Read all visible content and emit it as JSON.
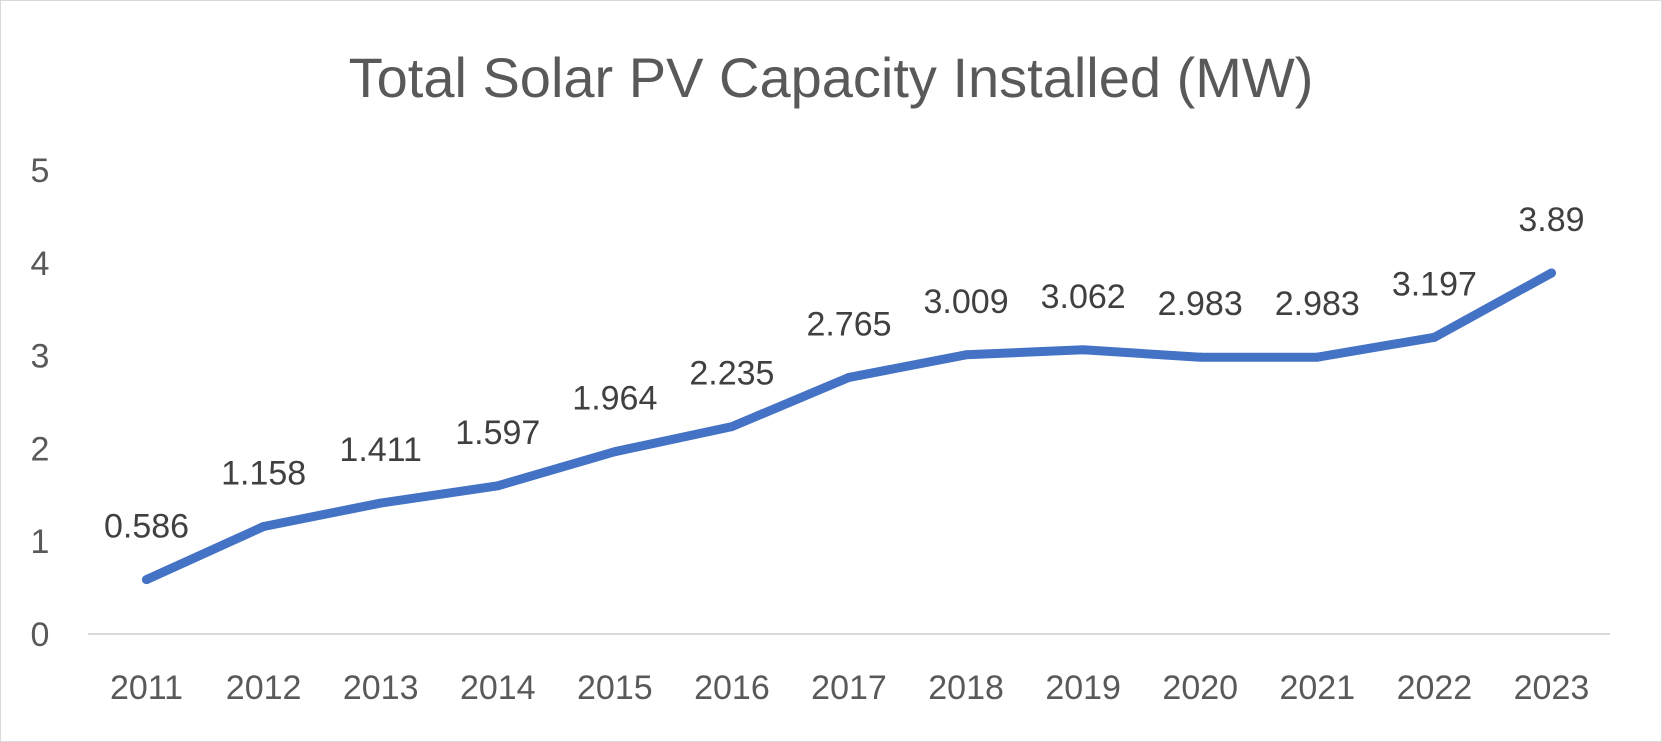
{
  "chart_data": {
    "type": "line",
    "title": "Total Solar PV Capacity Installed  (MW)",
    "xlabel": "",
    "ylabel": "",
    "categories": [
      "2011",
      "2012",
      "2013",
      "2014",
      "2015",
      "2016",
      "2017",
      "2018",
      "2019",
      "2020",
      "2021",
      "2022",
      "2023"
    ],
    "series": [
      {
        "values": [
          0.586,
          1.158,
          1.411,
          1.597,
          1.964,
          2.235,
          2.765,
          3.009,
          3.062,
          2.983,
          2.983,
          3.197,
          3.89
        ],
        "labels": [
          "0.586",
          "1.158",
          "1.411",
          "1.597",
          "1.964",
          "2.235",
          "2.765",
          "3.009",
          "3.062",
          "2.983",
          "2.983",
          "3.197",
          "3.89"
        ],
        "color": "#4472c4"
      }
    ],
    "ylim": [
      0,
      5
    ],
    "yticks": [
      "0",
      "1",
      "2",
      "3",
      "4",
      "5"
    ],
    "grid": false,
    "legend": "none",
    "data_labels": true
  }
}
